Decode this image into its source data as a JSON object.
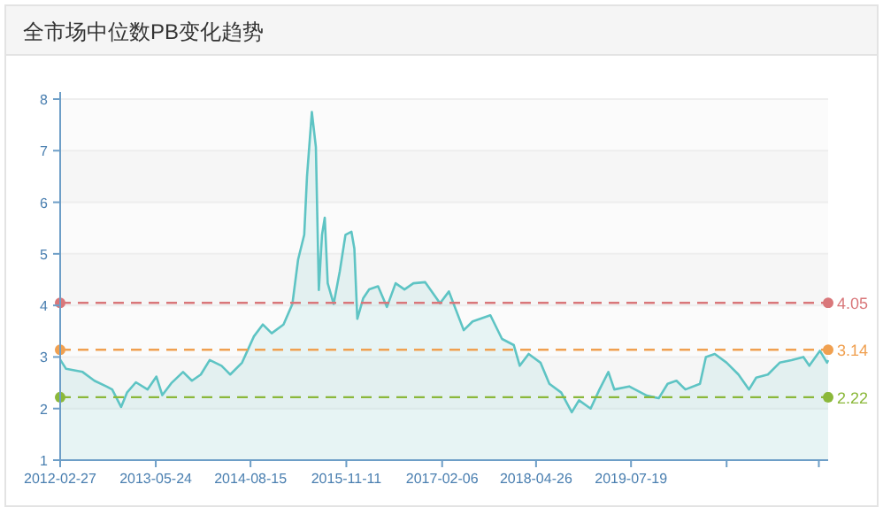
{
  "chart_data": {
    "type": "area",
    "title": "全市场中位数PB变化趋势",
    "x": [
      "2012-02-27",
      "2012-03-26",
      "2012-06-12",
      "2012-08-07",
      "2012-10-02",
      "2012-10-30",
      "2012-12-11",
      "2013-01-08",
      "2013-02-19",
      "2013-04-15",
      "2013-05-27",
      "2013-06-24",
      "2013-08-05",
      "2013-09-30",
      "2013-11-11",
      "2013-12-23",
      "2014-02-03",
      "2014-03-31",
      "2014-05-11",
      "2014-07-06",
      "2014-08-31",
      "2014-10-12",
      "2014-11-23",
      "2015-01-18",
      "2015-03-01",
      "2015-03-28",
      "2015-04-26",
      "2015-05-09",
      "2015-06-01",
      "2015-06-20",
      "2015-07-04",
      "2015-07-19",
      "2015-08-01",
      "2015-08-15",
      "2015-09-12",
      "2015-10-11",
      "2015-11-07",
      "2015-12-05",
      "2015-12-19",
      "2016-01-02",
      "2016-01-30",
      "2016-02-27",
      "2016-04-09",
      "2016-05-21",
      "2016-07-01",
      "2016-08-12",
      "2016-09-23",
      "2016-11-18",
      "2017-01-27",
      "2017-03-10",
      "2017-05-19",
      "2017-06-30",
      "2017-09-22",
      "2017-11-16",
      "2018-01-11",
      "2018-02-08",
      "2018-03-22",
      "2018-05-17",
      "2018-06-28",
      "2018-08-23",
      "2018-10-12",
      "2018-11-15",
      "2019-01-09",
      "2019-02-20",
      "2019-04-03",
      "2019-05-01",
      "2019-07-10",
      "2019-10-02",
      "2019-11-27",
      "2020-01-08",
      "2020-02-19",
      "2020-04-01",
      "2020-06-09",
      "2020-07-07",
      "2020-08-18",
      "2020-10-13",
      "2020-12-08",
      "2021-01-27",
      "2021-03-02",
      "2021-04-26",
      "2021-06-21",
      "2021-08-16",
      "2021-10-11",
      "2021-11-08",
      "2021-12-28",
      "2022-01-31",
      "2022-02-05"
    ],
    "series": [
      {
        "color": "#5ec4c4",
        "values": [
          2.95,
          2.77,
          2.71,
          2.54,
          2.43,
          2.37,
          2.03,
          2.31,
          2.51,
          2.37,
          2.62,
          2.26,
          2.49,
          2.71,
          2.54,
          2.66,
          2.94,
          2.83,
          2.66,
          2.89,
          3.4,
          3.63,
          3.46,
          3.63,
          4.03,
          4.89,
          5.37,
          6.5,
          7.75,
          7.07,
          4.3,
          5.37,
          5.7,
          4.43,
          4.03,
          4.66,
          5.37,
          5.43,
          5.1,
          3.74,
          4.14,
          4.31,
          4.37,
          3.97,
          4.43,
          4.31,
          4.43,
          4.45,
          4.04,
          4.27,
          3.52,
          3.69,
          3.81,
          3.35,
          3.23,
          2.83,
          3.06,
          2.89,
          2.48,
          2.31,
          1.93,
          2.16,
          2.0,
          2.37,
          2.71,
          2.37,
          2.43,
          2.25,
          2.2,
          2.48,
          2.54,
          2.37,
          2.48,
          3.0,
          3.06,
          2.89,
          2.66,
          2.37,
          2.6,
          2.66,
          2.89,
          2.94,
          3.0,
          2.83,
          3.12,
          2.89,
          2.94
        ]
      }
    ],
    "xlim": [
      "2012-02-27",
      "2022-02-05"
    ],
    "xticks": [
      {
        "value": "2012-02-27",
        "label": "2012-02-27"
      },
      {
        "value": "2013-05-24",
        "label": "2013-05-24"
      },
      {
        "value": "2014-08-15",
        "label": "2014-08-15"
      },
      {
        "value": "2015-11-11",
        "label": "2015-11-11"
      },
      {
        "value": "2017-02-06",
        "label": "2017-02-06"
      },
      {
        "value": "2018-04-26",
        "label": "2018-04-26"
      },
      {
        "value": "2019-07-19",
        "label": "2019-07-19"
      },
      {
        "value": "2020-10-13",
        "label": null
      },
      {
        "value": "2021-12-23",
        "label": null
      }
    ],
    "ylim": [
      1,
      8
    ],
    "yticks": [
      1,
      2,
      3,
      4,
      5,
      6,
      7,
      8
    ],
    "grid": "y",
    "ref_lines": [
      {
        "axis": "y",
        "value": 4.05,
        "label": "4.05",
        "color": "#d9777a",
        "line_style": "dashed"
      },
      {
        "axis": "y",
        "value": 3.14,
        "label": "3.14",
        "color": "#f0a050",
        "line_style": "dashed"
      },
      {
        "axis": "y",
        "value": 2.22,
        "label": "2.22",
        "color": "#8bb83a",
        "line_style": "dashed"
      }
    ]
  }
}
